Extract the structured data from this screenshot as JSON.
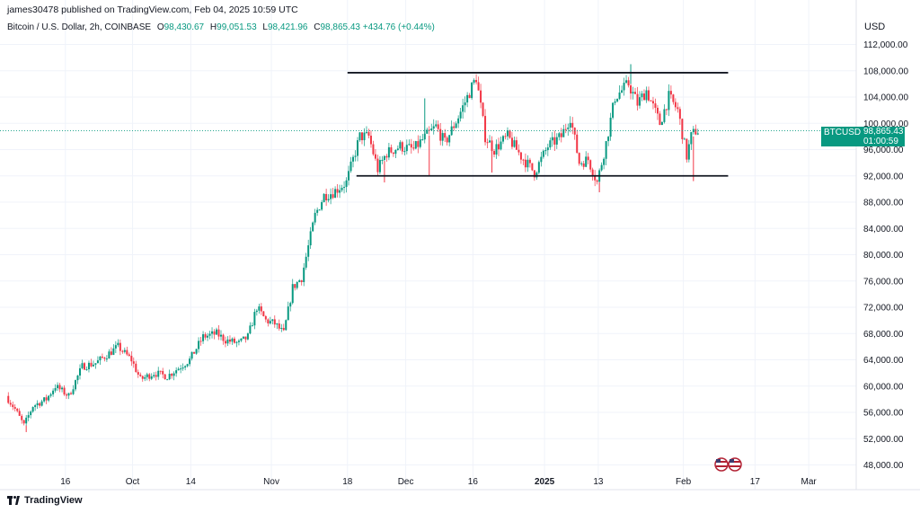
{
  "header": {
    "publisher": "james30478 published on TradingView.com, Feb 04, 2025 10:59 UTC"
  },
  "legend": {
    "symbol_desc": "Bitcoin / U.S. Dollar, 2h, COINBASE",
    "open_key": "O",
    "open": "98,430.67",
    "high_key": "H",
    "high": "99,051.53",
    "low_key": "L",
    "low": "98,421.96",
    "close_key": "C",
    "close": "98,865.43",
    "change": "+434.76 (+0.44%)"
  },
  "axis": {
    "currency": "USD"
  },
  "price_badge": {
    "symbol": "BTCUSD",
    "price": "98,865.43",
    "countdown": "01:00:59"
  },
  "footer": {
    "brand": "TradingView"
  },
  "colors": {
    "up": "#089981",
    "down": "#f23645",
    "grid": "#f0f3fa",
    "line": "#131722"
  },
  "chart_data": {
    "type": "candlestick",
    "ylim": [
      46000,
      114000
    ],
    "y_ticks": [
      {
        "value": 112000,
        "label": "112,000.00"
      },
      {
        "value": 108000,
        "label": "108,000.00"
      },
      {
        "value": 104000,
        "label": "104,000.00"
      },
      {
        "value": 100000,
        "label": "100,000.00"
      },
      {
        "value": 96000,
        "label": "96,000.00"
      },
      {
        "value": 92000,
        "label": "92,000.00"
      },
      {
        "value": 88000,
        "label": "88,000.00"
      },
      {
        "value": 84000,
        "label": "84,000.00"
      },
      {
        "value": 80000,
        "label": "80,000.00"
      },
      {
        "value": 76000,
        "label": "76,000.00"
      },
      {
        "value": 72000,
        "label": "72,000.00"
      },
      {
        "value": 68000,
        "label": "68,000.00"
      },
      {
        "value": 64000,
        "label": "64,000.00"
      },
      {
        "value": 60000,
        "label": "60,000.00"
      },
      {
        "value": 56000,
        "label": "56,000.00"
      },
      {
        "value": 52000,
        "label": "52,000.00"
      },
      {
        "value": 48000,
        "label": "48,000.00"
      }
    ],
    "x_ticks": [
      {
        "label": "16",
        "date": "2024-09-16"
      },
      {
        "label": "Oct",
        "date": "2024-10-01"
      },
      {
        "label": "14",
        "date": "2024-10-14"
      },
      {
        "label": "Nov",
        "date": "2024-11-01"
      },
      {
        "label": "18",
        "date": "2024-11-18"
      },
      {
        "label": "Dec",
        "date": "2024-12-01"
      },
      {
        "label": "16",
        "date": "2024-12-16"
      },
      {
        "label": "2025",
        "date": "2025-01-01",
        "bold": true
      },
      {
        "label": "13",
        "date": "2025-01-13"
      },
      {
        "label": "Feb",
        "date": "2025-02-01"
      },
      {
        "label": "17",
        "date": "2025-02-17"
      },
      {
        "label": "Mar",
        "date": "2025-03-01"
      }
    ],
    "x_range": [
      "2024-09-03",
      "2025-03-11"
    ],
    "price_path": [
      [
        "2024-09-03",
        58500
      ],
      [
        "2024-09-05",
        56500
      ],
      [
        "2024-09-07",
        54000
      ],
      [
        "2024-09-09",
        57000
      ],
      [
        "2024-09-12",
        58000
      ],
      [
        "2024-09-14",
        60000
      ],
      [
        "2024-09-17",
        58500
      ],
      [
        "2024-09-20",
        63000
      ],
      [
        "2024-09-23",
        63500
      ],
      [
        "2024-09-26",
        65000
      ],
      [
        "2024-09-28",
        66000
      ],
      [
        "2024-10-01",
        64000
      ],
      [
        "2024-10-03",
        61000
      ],
      [
        "2024-10-06",
        62000
      ],
      [
        "2024-10-09",
        61500
      ],
      [
        "2024-10-12",
        63000
      ],
      [
        "2024-10-14",
        64000
      ],
      [
        "2024-10-17",
        67500
      ],
      [
        "2024-10-20",
        68000
      ],
      [
        "2024-10-22",
        67000
      ],
      [
        "2024-10-25",
        66500
      ],
      [
        "2024-10-27",
        67500
      ],
      [
        "2024-10-29",
        72000
      ],
      [
        "2024-10-31",
        70000
      ],
      [
        "2024-11-02",
        69500
      ],
      [
        "2024-11-04",
        68000
      ],
      [
        "2024-11-06",
        75000
      ],
      [
        "2024-11-08",
        76500
      ],
      [
        "2024-11-11",
        86000
      ],
      [
        "2024-11-13",
        89000
      ],
      [
        "2024-11-15",
        89500
      ],
      [
        "2024-11-18",
        91000
      ],
      [
        "2024-11-21",
        98000
      ],
      [
        "2024-11-23",
        98000
      ],
      [
        "2024-11-25",
        93000
      ],
      [
        "2024-11-27",
        95500
      ],
      [
        "2024-11-30",
        96500
      ],
      [
        "2024-12-03",
        96000
      ],
      [
        "2024-12-05",
        97500
      ],
      [
        "2024-12-08",
        99500
      ],
      [
        "2024-12-10",
        97000
      ],
      [
        "2024-12-13",
        101000
      ],
      [
        "2024-12-15",
        104000
      ],
      [
        "2024-12-17",
        107000
      ],
      [
        "2024-12-19",
        98000
      ],
      [
        "2024-12-21",
        96000
      ],
      [
        "2024-12-24",
        98000
      ],
      [
        "2024-12-27",
        95000
      ],
      [
        "2024-12-30",
        92500
      ],
      [
        "2025-01-02",
        96500
      ],
      [
        "2025-01-05",
        98000
      ],
      [
        "2025-01-07",
        101000
      ],
      [
        "2025-01-09",
        94000
      ],
      [
        "2025-01-11",
        94500
      ],
      [
        "2025-01-13",
        91000
      ],
      [
        "2025-01-15",
        97000
      ],
      [
        "2025-01-17",
        104000
      ],
      [
        "2025-01-20",
        106000
      ],
      [
        "2025-01-22",
        103000
      ],
      [
        "2025-01-24",
        105000
      ],
      [
        "2025-01-27",
        100000
      ],
      [
        "2025-01-29",
        104000
      ],
      [
        "2025-01-31",
        102000
      ],
      [
        "2025-02-02",
        95000
      ],
      [
        "2025-02-03",
        98000
      ],
      [
        "2025-02-04",
        98865
      ]
    ],
    "spikes": [
      [
        "2024-09-07",
        53000,
        "down"
      ],
      [
        "2024-11-26",
        91000,
        "down"
      ],
      [
        "2024-12-05",
        103800,
        "up"
      ],
      [
        "2024-12-06",
        92000,
        "down"
      ],
      [
        "2024-12-20",
        92500,
        "down"
      ],
      [
        "2025-01-13",
        89500,
        "down"
      ],
      [
        "2025-01-20",
        109000,
        "up"
      ],
      [
        "2025-02-03",
        91200,
        "down"
      ]
    ],
    "lines": [
      {
        "from": "2024-11-18",
        "to": "2025-02-11",
        "value": 107700
      },
      {
        "from": "2024-11-20",
        "to": "2025-02-11",
        "value": 92000
      }
    ],
    "last_price": 98865.43
  }
}
